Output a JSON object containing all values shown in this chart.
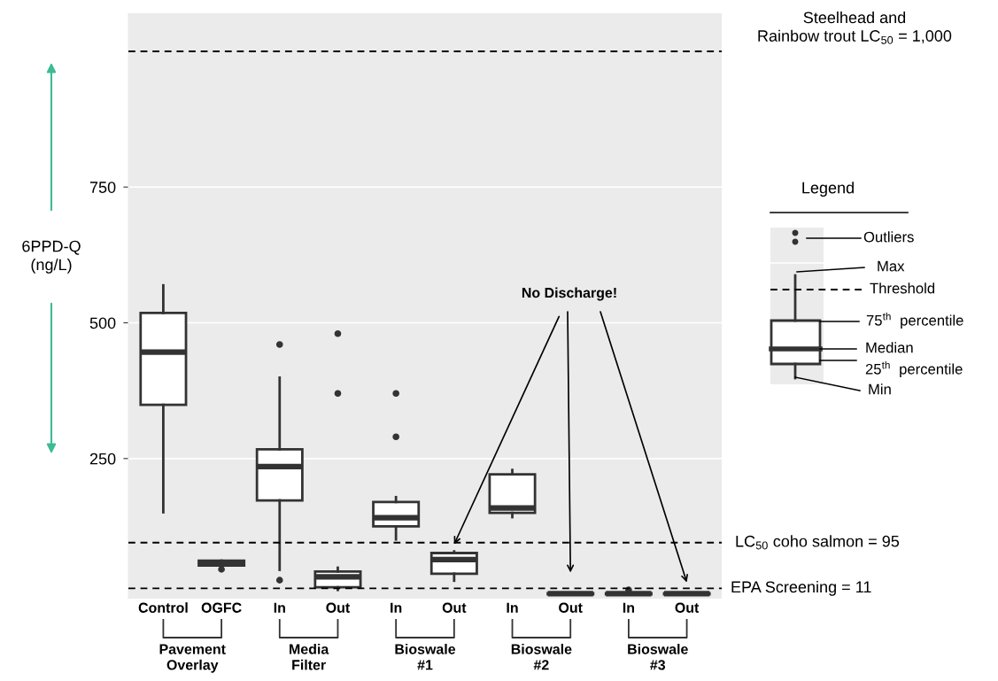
{
  "chart_data": {
    "type": "box",
    "ylabel": "6PPD-Q\n(ng/L)",
    "categories": [
      "Control",
      "OGFC",
      "In",
      "Out",
      "In",
      "Out",
      "In",
      "Out",
      "In",
      "Out"
    ],
    "boxes": [
      {
        "low": 151,
        "q1": 349,
        "median": 446,
        "q3": 518,
        "high": 569
      },
      {
        "low": 53,
        "q1": 53,
        "median": 57,
        "q3": 62,
        "high": 62,
        "outliers": [
          46
        ]
      },
      {
        "low": 45,
        "q1": 173,
        "median": 235,
        "q3": 267,
        "high": 399,
        "outliers": [
          460,
          26
        ]
      },
      {
        "low": 8,
        "q1": 13,
        "median": 32,
        "q3": 42,
        "high": 49,
        "outliers": [
          480,
          370
        ]
      },
      {
        "low": 101,
        "q1": 125,
        "median": 141,
        "q3": 170,
        "high": 179,
        "outliers": [
          370,
          290
        ]
      },
      {
        "low": 25,
        "q1": 38,
        "median": 64,
        "q3": 76,
        "high": 79
      },
      {
        "low": 142,
        "q1": 150,
        "median": 159,
        "q3": 221,
        "high": 229
      },
      {
        "low": 0,
        "q1": 0,
        "median": 1,
        "q3": 2,
        "high": 2
      },
      {
        "low": 0,
        "q1": 0,
        "median": 1,
        "q3": 2,
        "high": 2,
        "outliers": [
          8
        ]
      },
      {
        "low": 0,
        "q1": 0,
        "median": 1,
        "q3": 2,
        "high": 2
      }
    ],
    "color": "#ffffff",
    "ylim": [
      -8,
      1070
    ],
    "yticks": [
      250,
      500,
      750
    ],
    "grid": "y",
    "ref_lines": [
      {
        "axis": "y",
        "value": 1000,
        "label": "Steelhead and\nRainbow trout LC$_{50}$ = 1,000",
        "color": "#000000",
        "line_style": "dashed"
      },
      {
        "axis": "y",
        "value": 95,
        "label": "LC$_{50}$ coho salmon = 95",
        "color": "#000000",
        "line_style": "dashed"
      },
      {
        "axis": "y",
        "value": 11,
        "label": "EPA Screening = 11",
        "color": "#000000",
        "line_style": "dashed"
      }
    ],
    "annotations": [
      "Pavement\nOverlay",
      "Media\nFilter",
      "Bioswale\n#1",
      "Bioswale\n#2",
      "Bioswale\n#3",
      "No Discharge!",
      "Legend",
      "Outliers",
      "Max",
      "Threshold",
      "75$^{th}$  percentile",
      "Median",
      "25$^{th}$  percentile",
      "Min"
    ]
  }
}
